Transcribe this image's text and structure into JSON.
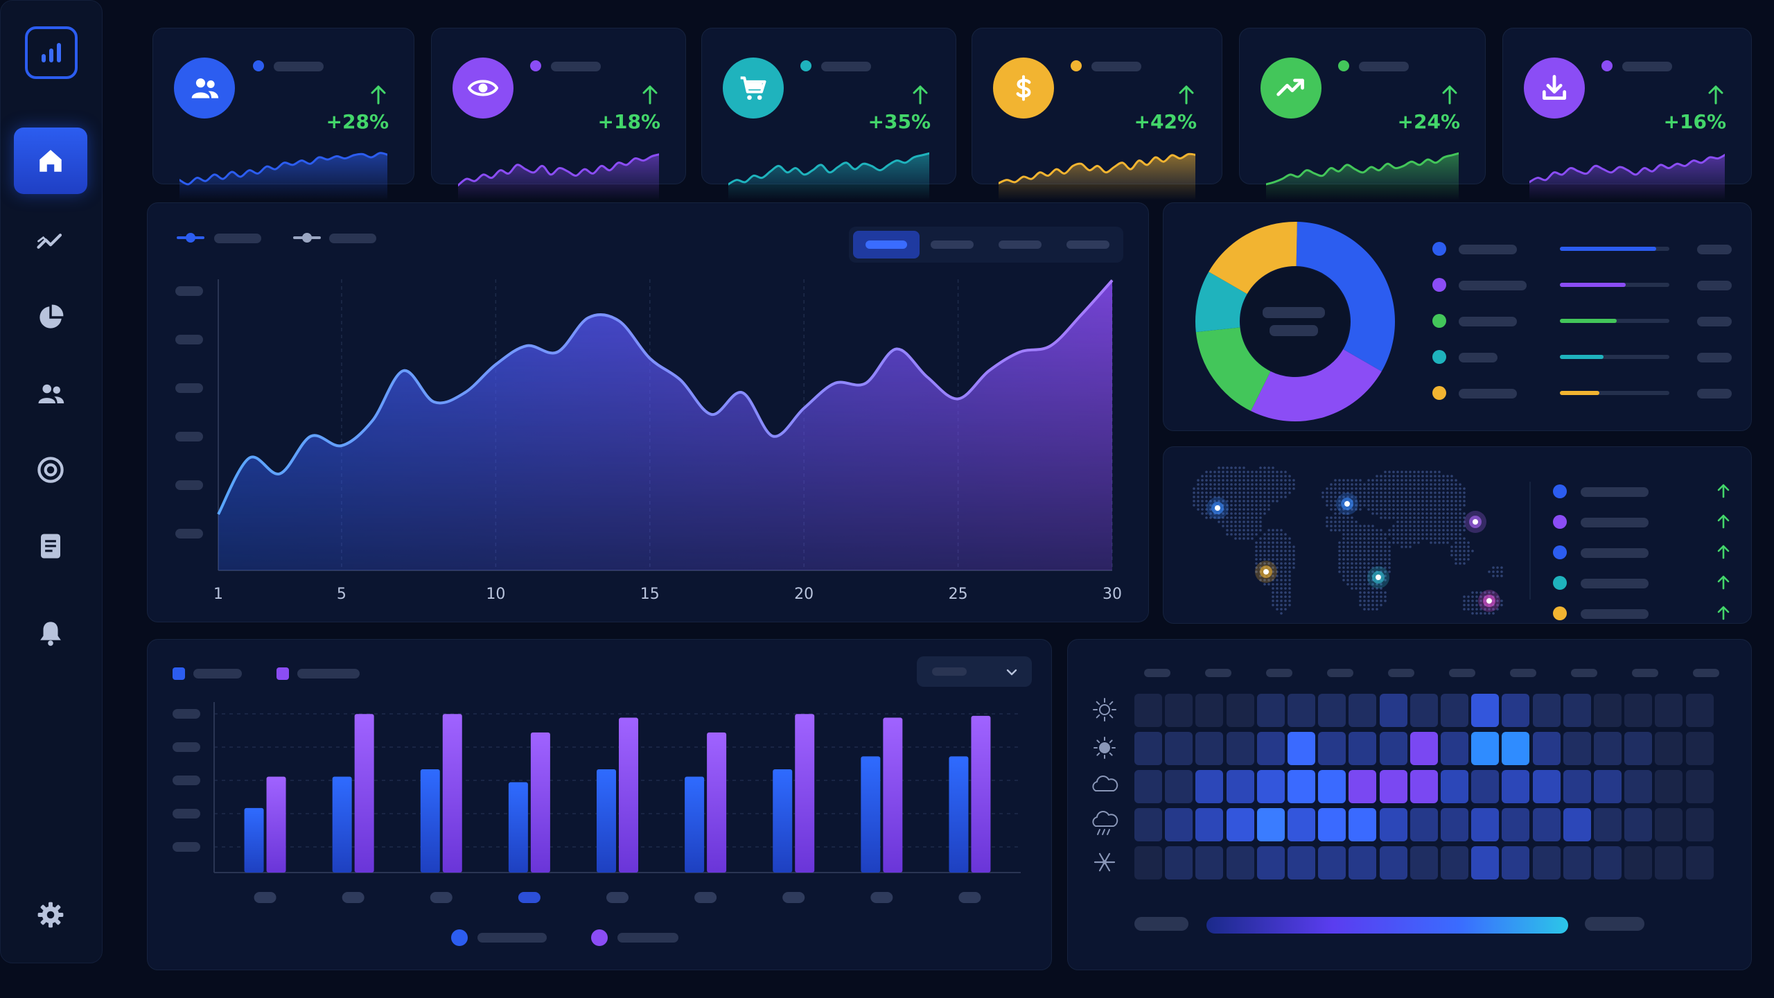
{
  "colors": {
    "background": "#060c1d",
    "panel": "#0b1530",
    "accent_blue": "#2c5df0",
    "accent_purple": "#8b4df5",
    "accent_teal": "#1fb3bd",
    "accent_green": "#43c65a",
    "accent_orange": "#f2b431",
    "positive": "#43d66a"
  },
  "sidebar": {
    "logo_icon": "bar-chart-logo-icon",
    "items": [
      {
        "icon": "home-icon",
        "active": true
      },
      {
        "icon": "trend-line-icon",
        "active": false
      },
      {
        "icon": "pie-chart-icon",
        "active": false
      },
      {
        "icon": "users-icon",
        "active": false
      },
      {
        "icon": "target-icon",
        "active": false
      },
      {
        "icon": "document-icon",
        "active": false
      },
      {
        "icon": "bell-icon",
        "active": false
      }
    ],
    "settings_icon": "gear-icon"
  },
  "kpis": [
    {
      "icon": "users-icon",
      "color": "#2c5df0",
      "change": "+28%",
      "trend": "up",
      "spark": [
        30,
        22,
        34,
        28,
        40,
        32,
        45,
        36,
        48,
        42,
        55,
        50,
        62,
        58,
        66,
        60,
        72,
        68,
        74,
        70,
        76,
        78,
        72,
        80,
        76
      ]
    },
    {
      "icon": "eye-icon",
      "color": "#8b4df5",
      "change": "+18%",
      "trend": "up",
      "spark": [
        20,
        32,
        28,
        40,
        34,
        48,
        42,
        58,
        50,
        44,
        56,
        40,
        52,
        46,
        38,
        50,
        42,
        56,
        48,
        62,
        58,
        70,
        66,
        74,
        78
      ]
    },
    {
      "icon": "cart-icon",
      "color": "#1fb3bd",
      "change": "+35%",
      "trend": "up",
      "spark": [
        22,
        30,
        26,
        38,
        34,
        46,
        56,
        44,
        52,
        40,
        48,
        58,
        44,
        54,
        62,
        50,
        60,
        56,
        48,
        58,
        66,
        62,
        72,
        76,
        80
      ]
    },
    {
      "icon": "dollar-icon",
      "color": "#f2b431",
      "change": "+42%",
      "trend": "up",
      "spark": [
        24,
        30,
        26,
        36,
        32,
        44,
        38,
        50,
        42,
        56,
        60,
        48,
        56,
        44,
        54,
        62,
        50,
        66,
        58,
        72,
        64,
        76,
        70,
        78,
        76
      ]
    },
    {
      "icon": "trend-up-icon",
      "color": "#43c65a",
      "change": "+24%",
      "trend": "up",
      "spark": [
        22,
        26,
        32,
        40,
        36,
        48,
        42,
        38,
        52,
        46,
        58,
        50,
        44,
        54,
        48,
        60,
        52,
        56,
        64,
        58,
        68,
        62,
        72,
        76,
        80
      ]
    },
    {
      "icon": "download-icon",
      "color": "#8b4df5",
      "change": "+16%",
      "trend": "up",
      "spark": [
        26,
        34,
        30,
        44,
        40,
        52,
        46,
        42,
        56,
        50,
        44,
        54,
        48,
        40,
        52,
        46,
        58,
        52,
        60,
        56,
        66,
        62,
        72,
        70,
        78
      ]
    }
  ],
  "main_chart": {
    "chart_data": {
      "type": "area",
      "x": [
        1,
        2,
        3,
        4,
        5,
        6,
        7,
        8,
        9,
        10,
        11,
        12,
        13,
        14,
        15,
        16,
        17,
        18,
        19,
        20,
        21,
        22,
        23,
        24,
        25,
        26,
        27,
        28,
        29,
        30
      ],
      "x_ticks": [
        "1",
        "5",
        "10",
        "15",
        "20",
        "25",
        "30"
      ],
      "series": [
        {
          "values": [
            18,
            36,
            31,
            43,
            40,
            48,
            64,
            54,
            57,
            66,
            72,
            70,
            81,
            80,
            68,
            61,
            50,
            57,
            43,
            52,
            60,
            60,
            71,
            62,
            55,
            64,
            70,
            72,
            82,
            93
          ]
        }
      ],
      "ylim": [
        0,
        100
      ],
      "grid": "vertical"
    },
    "ranges": 4,
    "active_range": 0
  },
  "donut": {
    "chart_data": {
      "type": "pie",
      "values": [
        33,
        24,
        16,
        10,
        17
      ],
      "colors": [
        "#2c5df0",
        "#8b4df5",
        "#43c65a",
        "#1fb3bd",
        "#f2b431"
      ]
    },
    "legend_fill": [
      0.88,
      0.6,
      0.52,
      0.4,
      0.36
    ]
  },
  "map": {
    "hotspot_colors": [
      "#3a8cff",
      "#3a8cff",
      "#b36bff",
      "#f2b431",
      "#35c4d6",
      "#e455d6"
    ],
    "legend_colors": [
      "#2c5df0",
      "#8b4df5",
      "#2c5df0",
      "#1fb3bd",
      "#f2b431"
    ]
  },
  "bar_chart": {
    "chart_data": {
      "type": "bar",
      "series": [
        {
          "color": "#2c5df0",
          "values": [
            35,
            52,
            56,
            49,
            56,
            52,
            56,
            63,
            63
          ]
        },
        {
          "color": "#8b4df5",
          "values": [
            52,
            86,
            86,
            76,
            84,
            76,
            86,
            84,
            85
          ]
        }
      ],
      "ylim": [
        0,
        100
      ],
      "categories_count": 9,
      "highlight_category": 3
    }
  },
  "heatmap": {
    "chart_data": {
      "type": "heatmap",
      "rows": 5,
      "cols": 19,
      "row_icons": [
        "sun-icon",
        "sun-small-icon",
        "cloud-icon",
        "cloud-rain-icon",
        "snowflake-icon"
      ],
      "values": [
        [
          0,
          0,
          0,
          0,
          1,
          1,
          1,
          1,
          2,
          1,
          1,
          4,
          2,
          1,
          1,
          0,
          0,
          0,
          0
        ],
        [
          1,
          1,
          1,
          1,
          2,
          5,
          2,
          2,
          2,
          6,
          2,
          8,
          8,
          2,
          1,
          1,
          1,
          0,
          0
        ],
        [
          1,
          1,
          3,
          3,
          4,
          5,
          5,
          6,
          6,
          6,
          3,
          2,
          3,
          3,
          2,
          2,
          1,
          0,
          0
        ],
        [
          1,
          2,
          3,
          4,
          7,
          4,
          5,
          5,
          3,
          2,
          2,
          3,
          2,
          2,
          3,
          1,
          1,
          0,
          0
        ],
        [
          0,
          1,
          1,
          1,
          2,
          2,
          2,
          2,
          2,
          1,
          1,
          3,
          2,
          1,
          1,
          1,
          0,
          0,
          0
        ]
      ]
    }
  }
}
